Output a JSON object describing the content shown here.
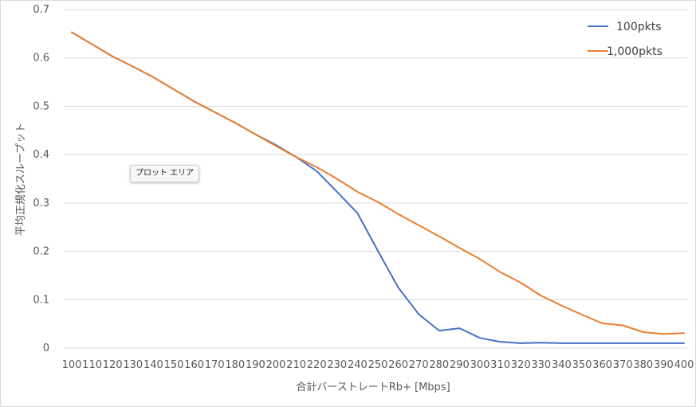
{
  "tooltip": {
    "text": "プロット エリア"
  },
  "chart_data": {
    "type": "line",
    "xlabel": "合計バーストレートRb+ [Mbps]",
    "ylabel": "平均正規化スループット",
    "ylim": [
      0,
      0.7
    ],
    "y_ticks": [
      "0",
      "0.1",
      "0.2",
      "0.3",
      "0.4",
      "0.5",
      "0.6",
      "0.7"
    ],
    "categories": [
      "100",
      "110",
      "120",
      "130",
      "140",
      "150",
      "160",
      "170",
      "180",
      "190",
      "200",
      "210",
      "220",
      "230",
      "240",
      "250",
      "260",
      "270",
      "280",
      "290",
      "300",
      "310",
      "320",
      "330",
      "340",
      "350",
      "360",
      "370",
      "380",
      "390",
      "400"
    ],
    "grid": true,
    "legend_position": "top-right",
    "series": [
      {
        "name": "100pkts",
        "color": "#4472c4",
        "values": [
          0.653,
          0.628,
          0.603,
          0.582,
          0.56,
          0.535,
          0.51,
          0.488,
          0.466,
          0.442,
          0.42,
          0.395,
          0.366,
          0.323,
          0.279,
          0.201,
          0.125,
          0.07,
          0.036,
          0.041,
          0.021,
          0.013,
          0.01,
          0.011,
          0.01,
          0.01,
          0.01,
          0.01,
          0.01,
          0.01,
          0.01
        ]
      },
      {
        "name": "1,000pkts",
        "color": "#ed7d31",
        "values": [
          0.653,
          0.628,
          0.603,
          0.582,
          0.56,
          0.535,
          0.51,
          0.488,
          0.466,
          0.442,
          0.418,
          0.395,
          0.374,
          0.35,
          0.323,
          0.302,
          0.277,
          0.254,
          0.231,
          0.207,
          0.184,
          0.157,
          0.135,
          0.108,
          0.088,
          0.069,
          0.051,
          0.047,
          0.033,
          0.029,
          0.031
        ]
      }
    ]
  }
}
